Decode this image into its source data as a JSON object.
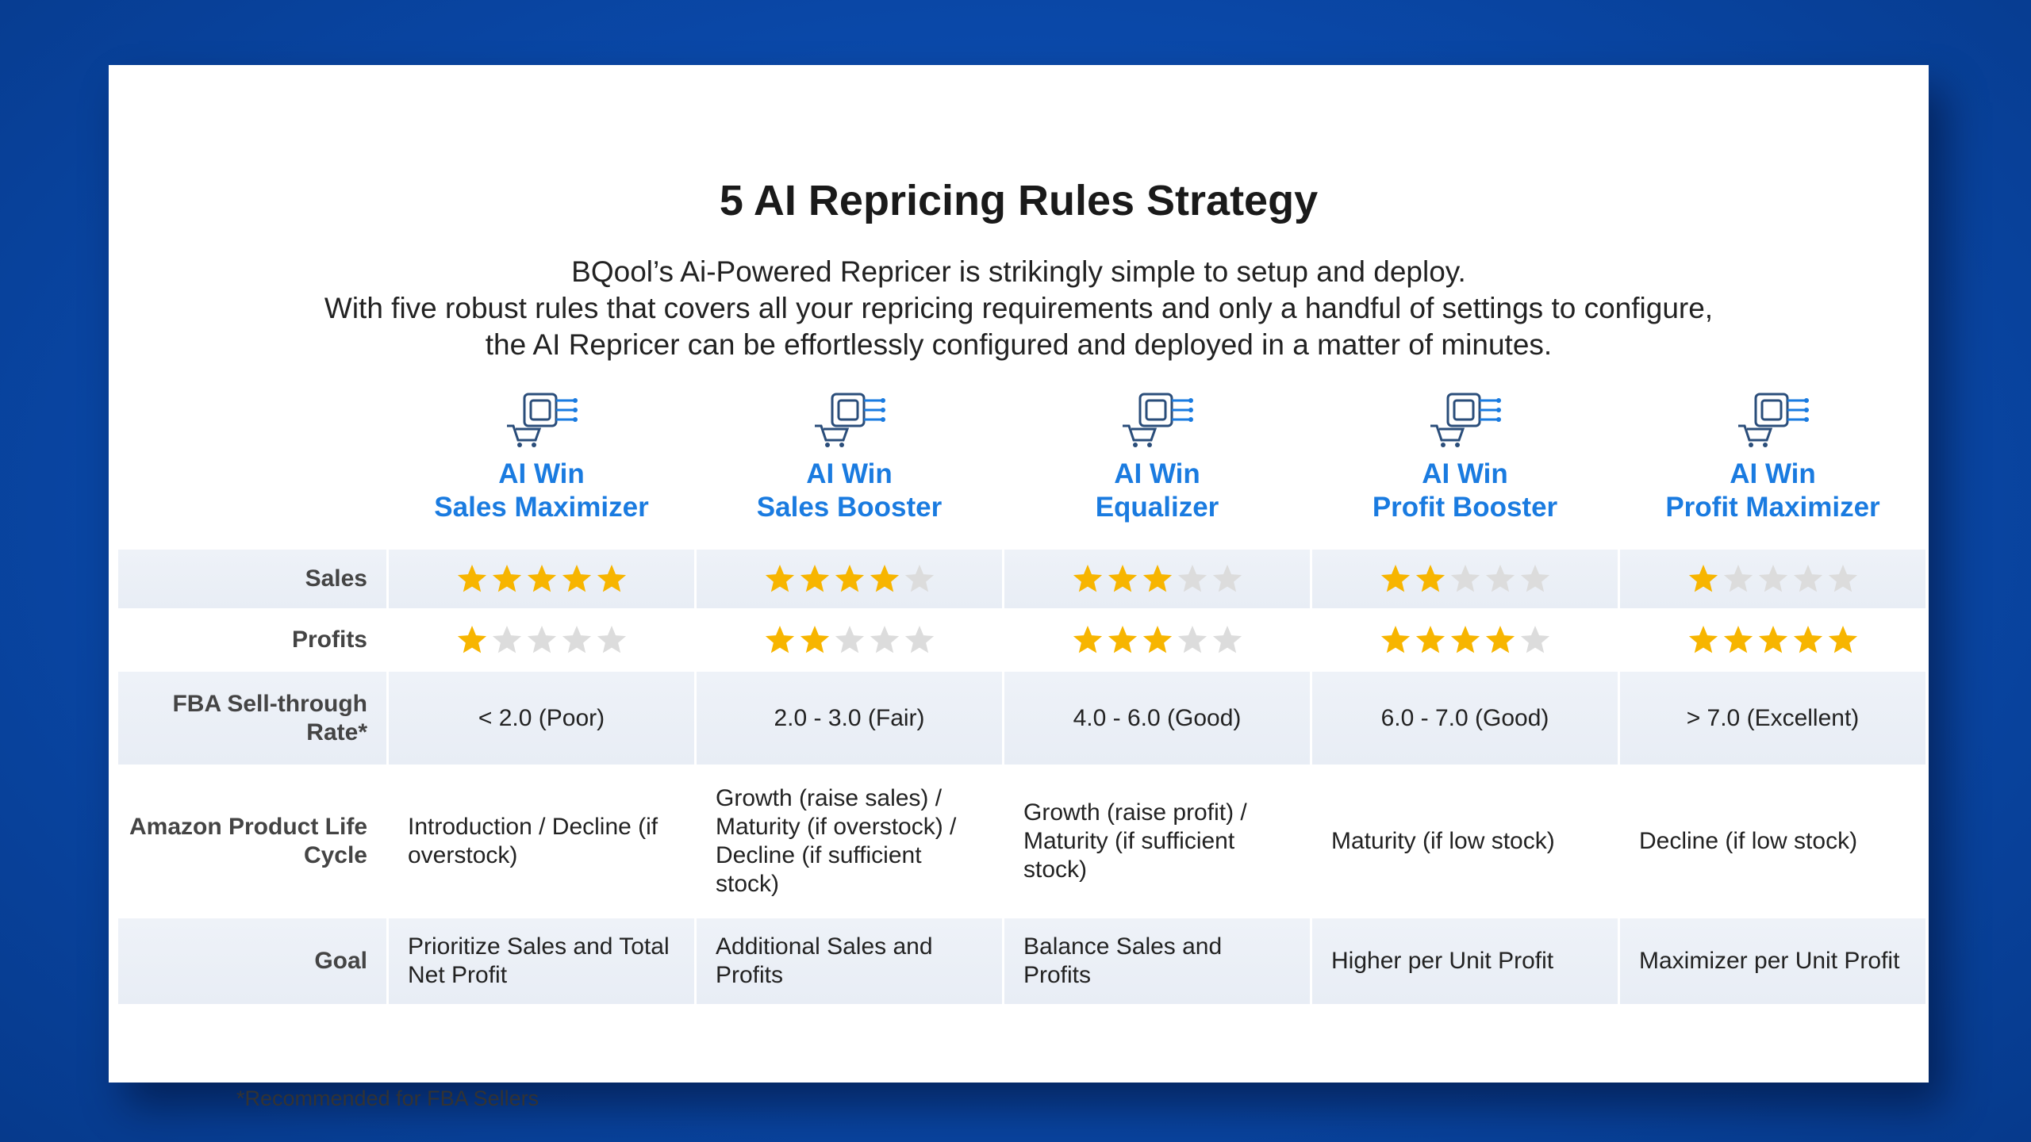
{
  "header": {
    "title": "5 AI Repricing Rules Strategy",
    "subtitle": [
      "BQool’s Ai-Powered Repricer is strikingly simple to setup and deploy.",
      "With five robust rules that covers all your repricing requirements and only a handful of settings to configure,",
      "the AI Repricer can be effortlessly configured and deployed in a matter of minutes."
    ]
  },
  "table": {
    "rating_scale": 5,
    "columns": [
      [
        "AI Win",
        "Sales Maximizer"
      ],
      [
        "AI Win",
        "Sales Booster"
      ],
      [
        "AI Win",
        "Equalizer"
      ],
      [
        "AI Win",
        "Profit Booster"
      ],
      [
        "AI Win",
        "Profit Maximizer"
      ]
    ],
    "rating_rows": [
      {
        "label": "Sales",
        "ratings": [
          5,
          4,
          3,
          2,
          1
        ]
      },
      {
        "label": "Profits",
        "ratings": [
          1,
          2,
          3,
          4,
          5
        ]
      }
    ],
    "text_rows": [
      {
        "label": "FBA Sell-through Rate*",
        "cells": [
          "< 2.0 (Poor)",
          "2.0 - 3.0 (Fair)",
          "4.0 - 6.0 (Good)",
          "6.0 - 7.0 (Good)",
          "> 7.0 (Excellent)"
        ]
      },
      {
        "label": "Amazon Product Life Cycle",
        "cells": [
          "Introduction / Decline (if overstock)",
          "Growth (raise sales) / Maturity (if overstock) / Decline (if sufficient stock)",
          "Growth (raise profit) / Maturity (if sufficient stock)",
          "Maturity (if low stock)",
          "Decline (if low stock)"
        ]
      },
      {
        "label": "Goal",
        "cells": [
          "Prioritize Sales and Total Net Profit",
          "Additional Sales and Profits",
          "Balance Sales and Profits",
          "Higher per Unit Profit",
          "Maximizer per Unit Profit"
        ]
      }
    ]
  },
  "footnote": "*Recommended for FBA Sellers"
}
